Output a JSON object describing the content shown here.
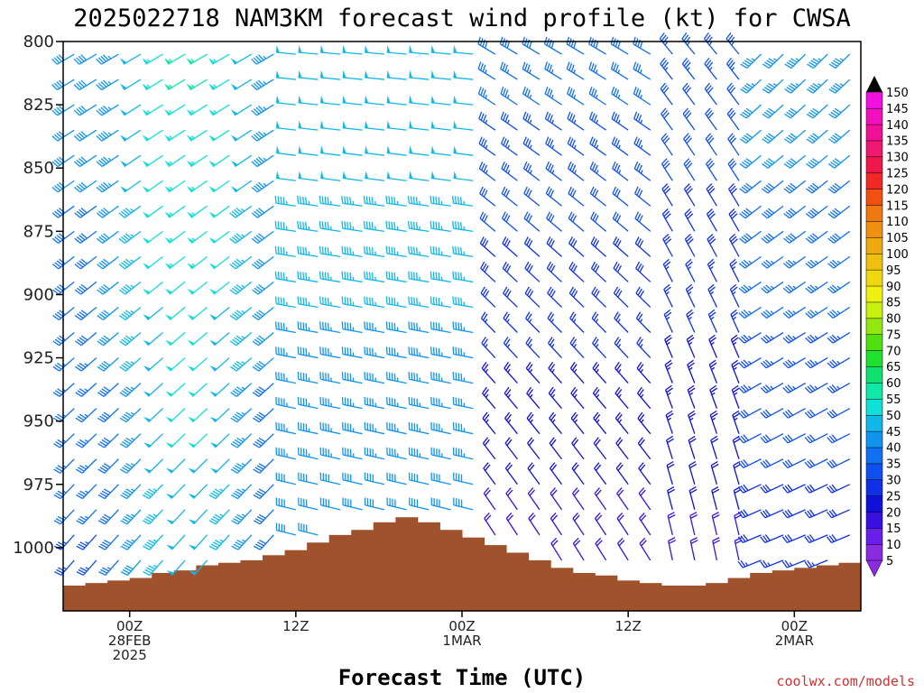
{
  "chart_data": {
    "type": "wind_barb_profile",
    "title": "2025022718 NAM3KM forecast wind profile (kt) for CWSA",
    "xlabel": "Forecast Time (UTC)",
    "ylabel": "",
    "y_axis": {
      "reversed": true,
      "range": [
        800,
        1025
      ],
      "ticks": [
        "800",
        "825",
        "850",
        "875",
        "900",
        "925",
        "950",
        "975",
        "1000"
      ]
    },
    "x_axis": {
      "range_hours": [
        -6,
        66
      ],
      "ticks": [
        {
          "hour": 0,
          "line1": "00Z",
          "line2": "28FEB",
          "line3": "2025"
        },
        {
          "hour": 15,
          "line1": "12Z",
          "line2": "",
          "line3": ""
        },
        {
          "hour": 30,
          "line1": "00Z",
          "line2": "1MAR",
          "line3": ""
        },
        {
          "hour": 45,
          "line1": "12Z",
          "line2": "",
          "line3": ""
        },
        {
          "hour": 60,
          "line1": "00Z",
          "line2": "2MAR",
          "line3": ""
        }
      ]
    },
    "colorbar": {
      "levels": [
        "5",
        "10",
        "15",
        "20",
        "25",
        "30",
        "35",
        "40",
        "45",
        "50",
        "55",
        "60",
        "65",
        "70",
        "75",
        "80",
        "85",
        "90",
        "95",
        "100",
        "105",
        "110",
        "115",
        "120",
        "125",
        "130",
        "135",
        "140",
        "145",
        "150"
      ],
      "colors": [
        "#8a2be2",
        "#6a1fe8",
        "#3a10e0",
        "#1010d8",
        "#1030e8",
        "#1050f0",
        "#1070f0",
        "#1094f0",
        "#10b8e8",
        "#10e0d8",
        "#10e8a8",
        "#10e070",
        "#20e030",
        "#50e010",
        "#90e810",
        "#c8f010",
        "#f0f010",
        "#f0d810",
        "#f0c010",
        "#f0a810",
        "#f09010",
        "#f07810",
        "#f05010",
        "#f02828",
        "#f01848",
        "#f01870",
        "#f01098",
        "#f010c0",
        "#f010e0",
        "#f010f8"
      ],
      "arrow_top_color": "#000000",
      "arrow_bottom_color": "#8a2be2"
    },
    "pressure_levels": [
      805,
      815,
      825,
      835,
      845,
      855,
      865,
      875,
      885,
      895,
      905,
      915,
      925,
      935,
      945,
      955,
      965,
      975,
      985,
      995,
      1005
    ],
    "time_steps_hours": [
      -5,
      -3,
      -1,
      1,
      3,
      5,
      7,
      9,
      11,
      13,
      15,
      17,
      19,
      21,
      23,
      25,
      27,
      29,
      31,
      33,
      35,
      37,
      39,
      41,
      43,
      45,
      47,
      49,
      51,
      53,
      55,
      57,
      59,
      61,
      63,
      65
    ],
    "surface_pressure": [
      1015,
      1014,
      1013,
      1012,
      1010,
      1009,
      1007,
      1006,
      1005,
      1003,
      1001,
      998,
      995,
      993,
      990,
      988,
      990,
      993,
      996,
      999,
      1002,
      1005,
      1008,
      1010,
      1011,
      1013,
      1014,
      1015,
      1015,
      1014,
      1012,
      1010,
      1009,
      1008,
      1007,
      1006
    ]
  },
  "credit": "coolwx.com/models"
}
